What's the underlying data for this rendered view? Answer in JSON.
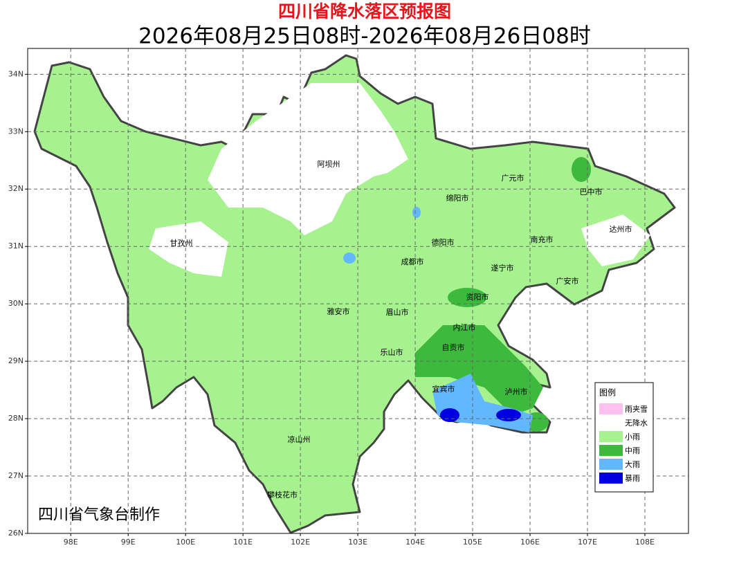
{
  "map_data": {
    "title": "四川省降水落区预报图",
    "subtitle": "2026年08月25日08时-2026年08月26日08时",
    "credit": "四川省气象台制作",
    "xlim": [
      97.25,
      108.76
    ],
    "ylim": [
      26,
      34.45
    ],
    "xticks": [
      {
        "value": 98,
        "label": "98E"
      },
      {
        "value": 99,
        "label": "99E"
      },
      {
        "value": 100,
        "label": "100E"
      },
      {
        "value": 101,
        "label": "101E"
      },
      {
        "value": 102,
        "label": "102E"
      },
      {
        "value": 103,
        "label": "103E"
      },
      {
        "value": 104,
        "label": "104E"
      },
      {
        "value": 105,
        "label": "105E"
      },
      {
        "value": 106,
        "label": "106E"
      },
      {
        "value": 107,
        "label": "107E"
      },
      {
        "value": 108,
        "label": "108E"
      }
    ],
    "yticks": [
      {
        "value": 26,
        "label": "26N"
      },
      {
        "value": 27,
        "label": "27N"
      },
      {
        "value": 28,
        "label": "28N"
      },
      {
        "value": 29,
        "label": "29N"
      },
      {
        "value": 30,
        "label": "30N"
      },
      {
        "value": 31,
        "label": "31N"
      },
      {
        "value": 32,
        "label": "32N"
      },
      {
        "value": 33,
        "label": "33N"
      },
      {
        "value": 34,
        "label": "34N"
      }
    ],
    "grid": true,
    "cities": [
      "阿坝州",
      "广元市",
      "巴中市",
      "绵阳市",
      "达州市",
      "甘孜州",
      "德阳市",
      "南充市",
      "成都市",
      "遂宁市",
      "广安市",
      "资阳市",
      "雅安市",
      "眉山市",
      "内江市",
      "自贡市",
      "乐山市",
      "宜宾市",
      "泸州市",
      "凉山州",
      "攀枝花市"
    ],
    "legend": {
      "title": "图例",
      "items": [
        {
          "name": "雨夹雪",
          "color": "#ffc0f0"
        },
        {
          "name": "无降水",
          "color": "#ffffff"
        },
        {
          "name": "小雨",
          "color": "#a6f28f"
        },
        {
          "name": "中雨",
          "color": "#3dba3d"
        },
        {
          "name": "大雨",
          "color": "#61b8ff"
        },
        {
          "name": "暴雨",
          "color": "#0000e1"
        }
      ]
    }
  }
}
